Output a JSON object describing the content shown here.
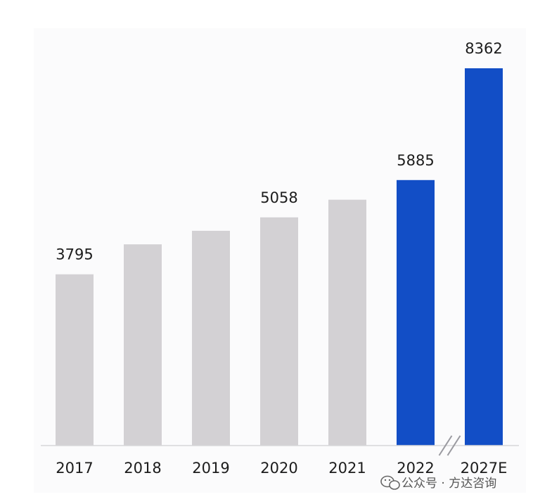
{
  "chart_data": {
    "type": "bar",
    "categories": [
      "2017",
      "2018",
      "2019",
      "2020",
      "2021",
      "2022",
      "2027E"
    ],
    "values": [
      3795,
      4460,
      4760,
      5058,
      5450,
      5885,
      8362
    ],
    "data_labels": [
      "3795",
      "",
      "",
      "5058",
      "",
      "5885",
      "8362"
    ],
    "highlighted": [
      false,
      false,
      false,
      false,
      false,
      true,
      true
    ],
    "ylim": [
      0,
      8362
    ],
    "axis_break_between": [
      "2022",
      "2027E"
    ],
    "colors": {
      "default_bar": "#d3d1d4",
      "highlight_bar": "#124ec6"
    },
    "grid": false,
    "legend": "none",
    "title": "",
    "xlabel": "",
    "ylabel": ""
  },
  "watermark": {
    "text": "公众号 · 方达咨询",
    "icon": "wechat-icon"
  }
}
